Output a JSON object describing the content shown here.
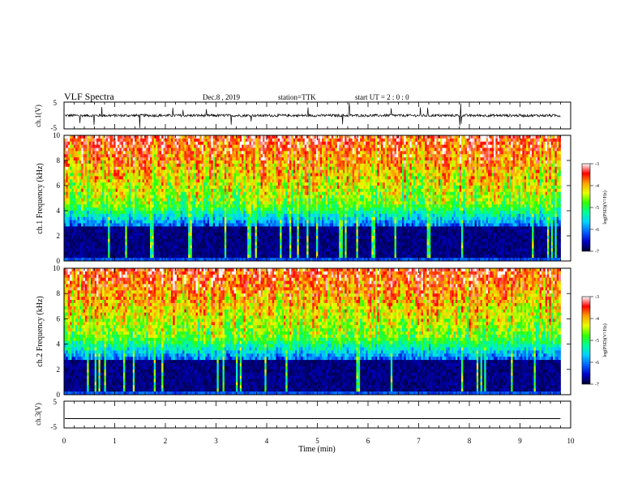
{
  "header": {
    "title": "VLF Spectra",
    "date": "Dec.8 , 2019",
    "station": "station=TTK",
    "start": "start UT = 2 : 0 : 0"
  },
  "chart_data": [
    {
      "id": "ch1_waveform",
      "type": "line",
      "ylabel": "ch.1(V)",
      "ylim": [
        -5,
        5
      ],
      "yticks": [
        5,
        -5
      ],
      "xlim": [
        0,
        10
      ],
      "series": [
        {
          "baseline": 0,
          "noise_amplitude": 0.5,
          "spike_amplitude_max": 5
        }
      ]
    },
    {
      "id": "ch1_spectrogram",
      "type": "heatmap",
      "ylabel": "ch.1 Frequency (kHz)",
      "ylim": [
        0,
        10
      ],
      "yticks": [
        0,
        2,
        4,
        6,
        8,
        10
      ],
      "xlim": [
        0,
        10
      ],
      "data_end_min": 9.8,
      "colorbar": {
        "label": "log(PSD)(V²/Hz)",
        "range": [
          -7,
          -3
        ],
        "ticks": [
          -3,
          -4,
          -5,
          -6,
          -7
        ]
      }
    },
    {
      "id": "ch2_spectrogram",
      "type": "heatmap",
      "ylabel": "ch.2 Frequency (kHz)",
      "ylim": [
        0,
        10
      ],
      "yticks": [
        0,
        2,
        4,
        6,
        8,
        10
      ],
      "xlim": [
        0,
        10
      ],
      "data_end_min": 9.8,
      "colorbar": {
        "label": "log(PSD)(V²/Hz)",
        "range": [
          -7,
          -3
        ],
        "ticks": [
          -3,
          -4,
          -5,
          -6,
          -7
        ]
      }
    },
    {
      "id": "ch3_waveform",
      "type": "line",
      "ylabel": "ch.3(V)",
      "ylim": [
        -5,
        5
      ],
      "yticks": [
        5,
        -5
      ],
      "xlim": [
        0,
        10
      ],
      "series": [
        {
          "baseline": -1.5,
          "noise_amplitude": 0
        }
      ]
    }
  ],
  "xaxis": {
    "label": "Time (min)",
    "ticks": [
      0,
      1,
      2,
      3,
      4,
      5,
      6,
      7,
      8,
      9,
      10
    ]
  },
  "colormap": [
    "#000030",
    "#0000c8",
    "#0064ff",
    "#00d2ff",
    "#00ff96",
    "#32ff00",
    "#e6ff00",
    "#ffa000",
    "#ff0000",
    "#ffffff"
  ]
}
